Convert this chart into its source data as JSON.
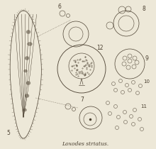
{
  "bg_color": "#ede8d8",
  "line_color": "#4a3f30",
  "title_text": "Loxodes striatus.",
  "title_fontsize": 5.5,
  "label_fontsize": 5.5,
  "fig_width": 2.2,
  "fig_height": 2.1,
  "dpi": 100
}
